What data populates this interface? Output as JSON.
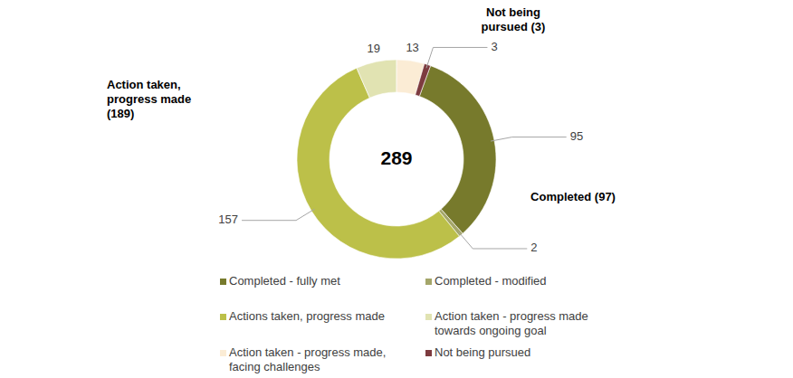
{
  "chart_data": {
    "type": "donut",
    "categories": [
      "Completed - fully met",
      "Completed - modified",
      "Actions taken, progress made",
      "Action taken - progress made towards ongoing goal",
      "Action taken - progress made, facing challenges",
      "Not being pursued"
    ],
    "values": [
      95,
      2,
      157,
      19,
      13,
      3
    ],
    "colors": [
      "#777a2c",
      "#a4a66a",
      "#bcc049",
      "#e1e3b2",
      "#fbecd5",
      "#7d3b3f"
    ],
    "data_labels": true,
    "legend": "bottom",
    "total": 289,
    "annotations": [
      "Completed (97)",
      "Action taken, progress made (189)",
      "Not being pursued (3)"
    ]
  }
}
